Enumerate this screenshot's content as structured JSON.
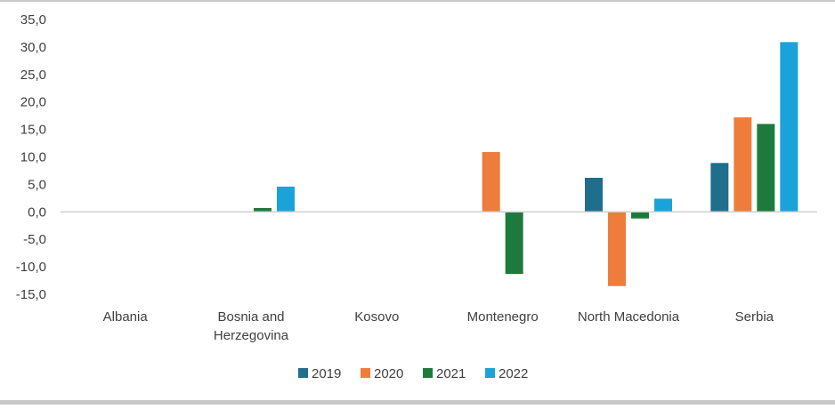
{
  "chart_data": {
    "type": "bar",
    "title": "",
    "xlabel": "",
    "ylabel": "",
    "categories": [
      [
        "Albania"
      ],
      [
        "Bosnia and",
        "Herzegovina"
      ],
      [
        "Kosovo"
      ],
      [
        "Montenegro"
      ],
      [
        "North Macedonia"
      ],
      [
        "Serbia"
      ]
    ],
    "series": [
      {
        "name": "2019",
        "color": "#1f6e8c",
        "values": [
          null,
          null,
          null,
          null,
          6.2,
          8.9
        ]
      },
      {
        "name": "2020",
        "color": "#ee7d3b",
        "values": [
          null,
          null,
          null,
          10.9,
          -13.5,
          17.2
        ]
      },
      {
        "name": "2021",
        "color": "#1e7a3c",
        "values": [
          null,
          0.7,
          null,
          -11.3,
          -1.2,
          16.0
        ]
      },
      {
        "name": "2022",
        "color": "#1aa3d9",
        "values": [
          null,
          4.6,
          null,
          null,
          2.4,
          30.9
        ]
      }
    ],
    "ylim": [
      -15,
      35
    ],
    "yticks": [
      35,
      30,
      25,
      20,
      15,
      10,
      5,
      0,
      -5,
      -10,
      -15
    ],
    "ytick_labels": [
      "35,0",
      "30,0",
      "25,0",
      "20,0",
      "15,0",
      "10,0",
      "5,0",
      "0,0",
      "-5,0",
      "-10,0",
      "-15,0"
    ],
    "grid": false,
    "legend_position": "bottom"
  }
}
